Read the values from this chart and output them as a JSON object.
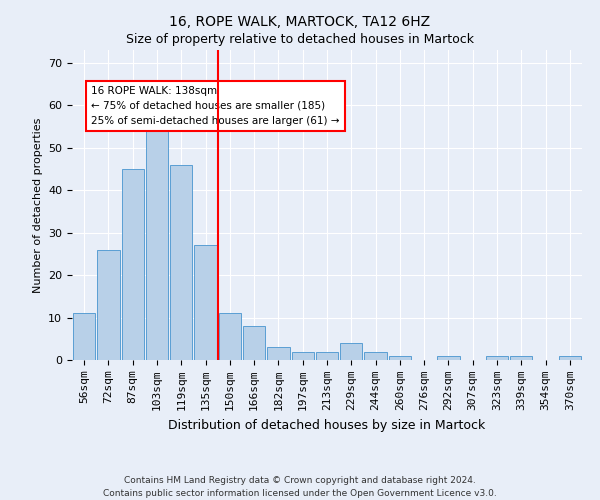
{
  "title": "16, ROPE WALK, MARTOCK, TA12 6HZ",
  "subtitle": "Size of property relative to detached houses in Martock",
  "xlabel": "Distribution of detached houses by size in Martock",
  "ylabel": "Number of detached properties",
  "bar_labels": [
    "56sqm",
    "72sqm",
    "87sqm",
    "103sqm",
    "119sqm",
    "135sqm",
    "150sqm",
    "166sqm",
    "182sqm",
    "197sqm",
    "213sqm",
    "229sqm",
    "244sqm",
    "260sqm",
    "276sqm",
    "292sqm",
    "307sqm",
    "323sqm",
    "339sqm",
    "354sqm",
    "370sqm"
  ],
  "bar_values": [
    11,
    26,
    45,
    56,
    46,
    27,
    11,
    8,
    3,
    2,
    2,
    4,
    2,
    1,
    0,
    1,
    0,
    1,
    1,
    0,
    1
  ],
  "bar_color": "#b8d0e8",
  "bar_edge_color": "#5a9fd4",
  "red_line_index": 5.5,
  "annotation_line1": "16 ROPE WALK: 138sqm",
  "annotation_line2": "← 75% of detached houses are smaller (185)",
  "annotation_line3": "25% of semi-detached houses are larger (61) →",
  "ylim": [
    0,
    73
  ],
  "yticks": [
    0,
    10,
    20,
    30,
    40,
    50,
    60,
    70
  ],
  "footer1": "Contains HM Land Registry data © Crown copyright and database right 2024.",
  "footer2": "Contains public sector information licensed under the Open Government Licence v3.0.",
  "bg_color": "#e8eef8",
  "plot_bg_color": "#e8eef8",
  "grid_color": "#ffffff",
  "title_fontsize": 10,
  "subtitle_fontsize": 9,
  "ylabel_fontsize": 8,
  "xlabel_fontsize": 9,
  "tick_fontsize": 8,
  "ann_fontsize": 7.5,
  "footer_fontsize": 6.5
}
